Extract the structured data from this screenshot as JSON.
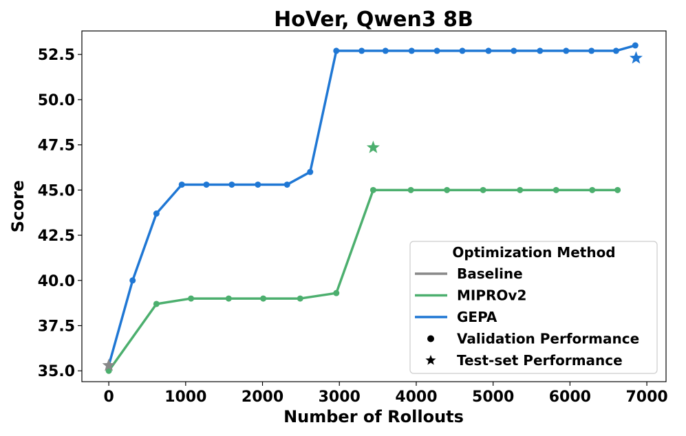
{
  "chart_data": {
    "type": "line",
    "title": "HoVer, Qwen3 8B",
    "xlabel": "Number of Rollouts",
    "ylabel": "Score",
    "xlim": [
      -350,
      7250
    ],
    "ylim": [
      34.4,
      53.8
    ],
    "xticks": [
      0,
      1000,
      2000,
      3000,
      4000,
      5000,
      6000,
      7000
    ],
    "yticks": [
      35.0,
      37.5,
      40.0,
      42.5,
      45.0,
      47.5,
      50.0,
      52.5
    ],
    "xtick_labels": [
      "0",
      "1000",
      "2000",
      "3000",
      "4000",
      "5000",
      "6000",
      "7000"
    ],
    "ytick_labels": [
      "35.0",
      "37.5",
      "40.0",
      "42.5",
      "45.0",
      "47.5",
      "50.0",
      "52.5"
    ],
    "grid": false,
    "legend": {
      "title": "Optimization Method",
      "placement": "lower-right",
      "entries": [
        {
          "label": "Baseline",
          "kind": "line",
          "color": "#888888"
        },
        {
          "label": "MIPROv2",
          "kind": "line",
          "color": "#4caf6e"
        },
        {
          "label": "GEPA",
          "kind": "line",
          "color": "#1f77d4"
        },
        {
          "label": "Validation Performance",
          "kind": "dot",
          "color": "#000000"
        },
        {
          "label": "Test-set Performance",
          "kind": "star",
          "color": "#000000"
        }
      ]
    },
    "series": [
      {
        "name": "GEPA",
        "color": "#1f77d4",
        "validation": {
          "x": [
            0,
            310,
            620,
            950,
            1270,
            1600,
            1940,
            2320,
            2620,
            2960,
            3290,
            3600,
            3940,
            4270,
            4600,
            4940,
            5270,
            5610,
            5950,
            6280,
            6600,
            6850
          ],
          "y": [
            35.3,
            40.0,
            43.7,
            45.3,
            45.3,
            45.3,
            45.3,
            45.3,
            46.0,
            52.7,
            52.7,
            52.7,
            52.7,
            52.7,
            52.7,
            52.7,
            52.7,
            52.7,
            52.7,
            52.7,
            52.7,
            53.0
          ]
        },
        "test": {
          "x": 6860,
          "y": 52.3
        }
      },
      {
        "name": "MIPROv2",
        "color": "#4caf6e",
        "validation": {
          "x": [
            0,
            620,
            1070,
            1560,
            2010,
            2490,
            2960,
            3440,
            3930,
            4400,
            4870,
            5350,
            5820,
            6290,
            6620
          ],
          "y": [
            35.0,
            38.7,
            39.0,
            39.0,
            39.0,
            39.0,
            39.3,
            45.0,
            45.0,
            45.0,
            45.0,
            45.0,
            45.0,
            45.0,
            45.0
          ]
        },
        "test": {
          "x": 3440,
          "y": 47.35
        }
      },
      {
        "name": "Baseline",
        "color": "#888888",
        "validation": {
          "x": [],
          "y": []
        },
        "test": {
          "x": 0,
          "y": 35.3
        }
      }
    ]
  }
}
